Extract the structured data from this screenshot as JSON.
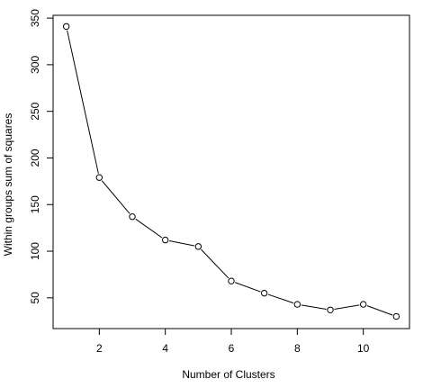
{
  "chart_data": {
    "type": "line",
    "title": "",
    "xlabel": "Number of Clusters",
    "ylabel": "Within groups sum of squares",
    "x": [
      1,
      2,
      3,
      4,
      5,
      6,
      7,
      8,
      9,
      10,
      11
    ],
    "series": [
      {
        "values": [
          341,
          179,
          137,
          112,
          105,
          68,
          55,
          43,
          37,
          43,
          30
        ]
      }
    ],
    "xlim": [
      0.6,
      11.4
    ],
    "ylim": [
      17,
      353
    ],
    "xticks": [
      2,
      4,
      6,
      8,
      10
    ],
    "yticks": [
      50,
      100,
      150,
      200,
      250,
      300,
      350
    ],
    "marker": "open-circle",
    "grid": false,
    "line_color": "#000000",
    "marker_color": "#000000"
  }
}
